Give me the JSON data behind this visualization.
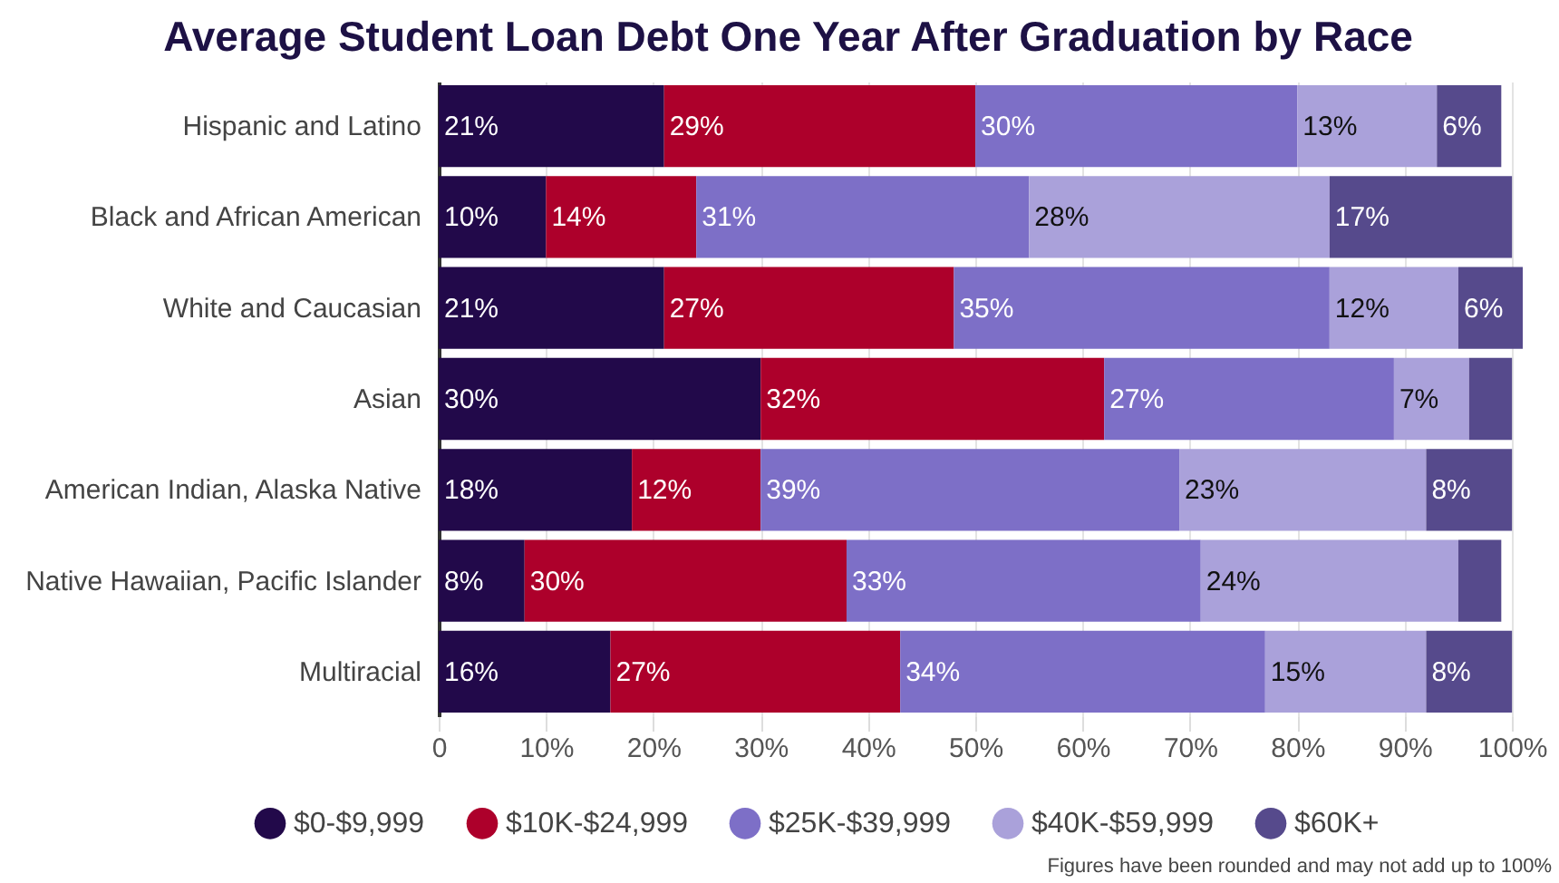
{
  "chart_data": {
    "type": "bar",
    "orientation": "horizontal",
    "stacked": true,
    "title": "Average Student Loan Debt One Year After Graduation by Race",
    "categories": [
      "Hispanic and Latino",
      "Black and African American",
      "White and Caucasian",
      "Asian",
      "American Indian, Alaska Native",
      "Native Hawaiian, Pacific Islander",
      "Multiracial"
    ],
    "series": [
      {
        "name": "$0-$9,999",
        "color": "#22094a",
        "values": [
          21,
          10,
          21,
          30,
          18,
          8,
          16
        ],
        "value_labels": [
          "21%",
          "10%",
          "21%",
          "30%",
          "18%",
          "8%",
          "16%"
        ]
      },
      {
        "name": "$10K-$24,999",
        "color": "#ad002b",
        "values": [
          29,
          14,
          27,
          32,
          12,
          30,
          27
        ],
        "value_labels": [
          "29%",
          "14%",
          "27%",
          "32%",
          "12%",
          "30%",
          "27%"
        ]
      },
      {
        "name": "$25K-$39,999",
        "color": "#7d6fc7",
        "values": [
          30,
          31,
          35,
          27,
          39,
          33,
          34
        ],
        "value_labels": [
          "30%",
          "31%",
          "35%",
          "27%",
          "39%",
          "33%",
          "34%"
        ]
      },
      {
        "name": "$40K-$59,999",
        "color": "#aaa1da",
        "values": [
          13,
          28,
          12,
          7,
          23,
          24,
          15
        ],
        "value_labels": [
          "13%",
          "28%",
          "12%",
          "7%",
          "23%",
          "24%",
          "15%"
        ]
      },
      {
        "name": "$60K+",
        "color": "#564a8c",
        "values": [
          6,
          17,
          6,
          4,
          8,
          4,
          8
        ],
        "value_labels": [
          "6%",
          "17%",
          "6%",
          null,
          "8%",
          null,
          "8%"
        ]
      }
    ],
    "xlim": [
      0,
      101
    ],
    "xticks": [
      {
        "value": 0,
        "label": "0"
      },
      {
        "value": 10,
        "label": "10%"
      },
      {
        "value": 20,
        "label": "20%"
      },
      {
        "value": 30,
        "label": "30%"
      },
      {
        "value": 40,
        "label": "40%"
      },
      {
        "value": 50,
        "label": "50%"
      },
      {
        "value": 60,
        "label": "60%"
      },
      {
        "value": 70,
        "label": "70%"
      },
      {
        "value": 80,
        "label": "80%"
      },
      {
        "value": 90,
        "label": "90%"
      },
      {
        "value": 100,
        "label": "100%"
      }
    ],
    "grid": "x",
    "legend": "bottom",
    "annotations": [
      "Figures have been rounded and may not add up to 100%"
    ]
  }
}
